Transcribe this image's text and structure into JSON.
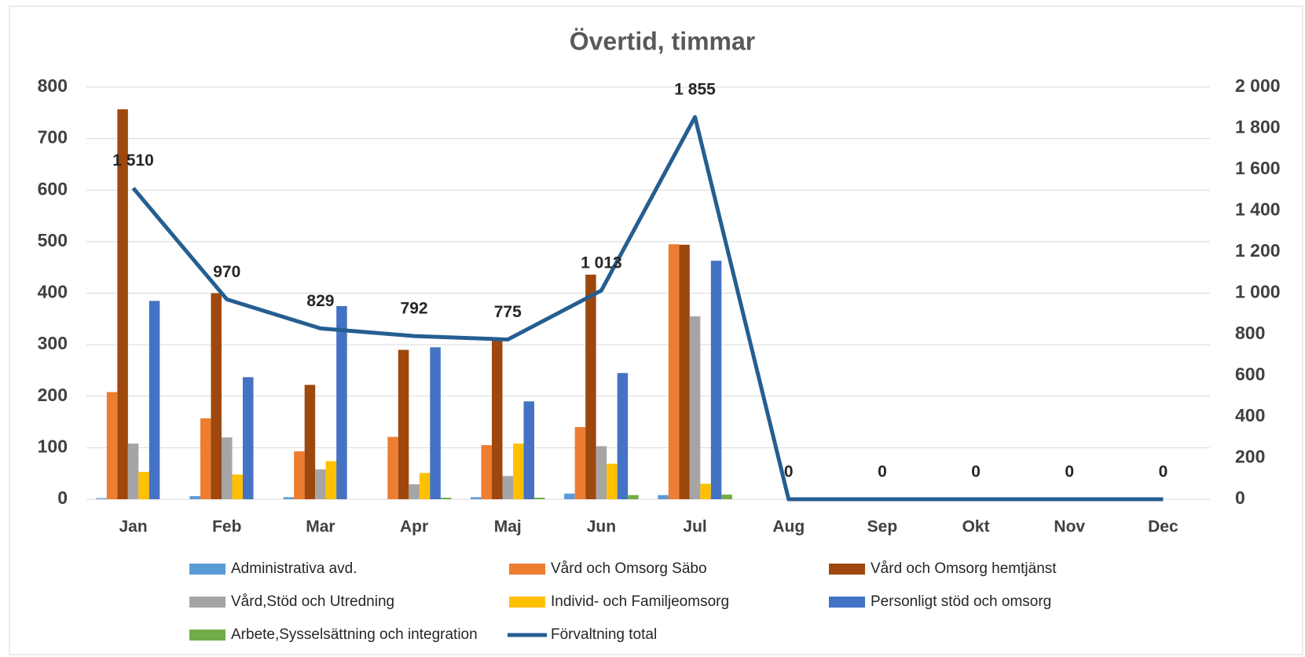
{
  "chart_data": {
    "type": "bar",
    "title": "Övertid, timmar",
    "categories": [
      "Jan",
      "Feb",
      "Mar",
      "Apr",
      "Maj",
      "Jun",
      "Jul",
      "Aug",
      "Sep",
      "Okt",
      "Nov",
      "Dec"
    ],
    "series": [
      {
        "name": "Administrativa avd.",
        "color": "#5b9bd5",
        "values": [
          2,
          6,
          4,
          0,
          4,
          11,
          8,
          null,
          null,
          null,
          null,
          null
        ]
      },
      {
        "name": "Vård och Omsorg Säbo",
        "color": "#ed7d31",
        "values": [
          208,
          157,
          93,
          121,
          105,
          140,
          495,
          null,
          null,
          null,
          null,
          null
        ]
      },
      {
        "name": "Vård och Omsorg hemtjänst",
        "color": "#9e480e",
        "values": [
          757,
          400,
          222,
          290,
          312,
          436,
          494,
          null,
          null,
          null,
          null,
          null
        ]
      },
      {
        "name": "Vård,Stöd och Utredning",
        "color": "#a5a5a5",
        "values": [
          108,
          120,
          58,
          29,
          45,
          103,
          355,
          null,
          null,
          null,
          null,
          null
        ]
      },
      {
        "name": "Individ- och Familjeomsorg",
        "color": "#ffc000",
        "values": [
          53,
          48,
          74,
          51,
          108,
          69,
          30,
          null,
          null,
          null,
          null,
          null
        ]
      },
      {
        "name": "Personligt stöd och omsorg",
        "color": "#4472c4",
        "values": [
          385,
          237,
          375,
          295,
          190,
          245,
          463,
          null,
          null,
          null,
          null,
          null
        ]
      },
      {
        "name": "Arbete,Sysselsättning och integration",
        "color": "#70ad47",
        "values": [
          0,
          0,
          0,
          3,
          3,
          8,
          9,
          null,
          null,
          null,
          null,
          null
        ]
      },
      {
        "name": "Förvaltning total",
        "color": "#255e91",
        "type": "line",
        "axis": "y2",
        "values": [
          1510,
          970,
          829,
          792,
          775,
          1013,
          1855,
          0,
          0,
          0,
          0,
          0
        ],
        "value_labels": [
          "1 510",
          "970",
          "829",
          "792",
          "775",
          "1 013",
          "1 855",
          "0",
          "0",
          "0",
          "0",
          "0"
        ]
      }
    ],
    "ylim": [
      0,
      800
    ],
    "yticks": [
      0,
      100,
      200,
      300,
      400,
      500,
      600,
      700,
      800
    ],
    "y2lim": [
      0,
      2000
    ],
    "y2ticks": [
      0,
      200,
      400,
      600,
      800,
      {
        "value": 1000,
        "label": "1 000"
      },
      {
        "value": 1200,
        "label": "1 200"
      },
      {
        "value": 1400,
        "label": "1 400"
      },
      {
        "value": 1600,
        "label": "1 600"
      },
      {
        "value": 1800,
        "label": "1 800"
      },
      {
        "value": 2000,
        "label": "2 000"
      }
    ],
    "grid": true,
    "legend": "bottom"
  }
}
